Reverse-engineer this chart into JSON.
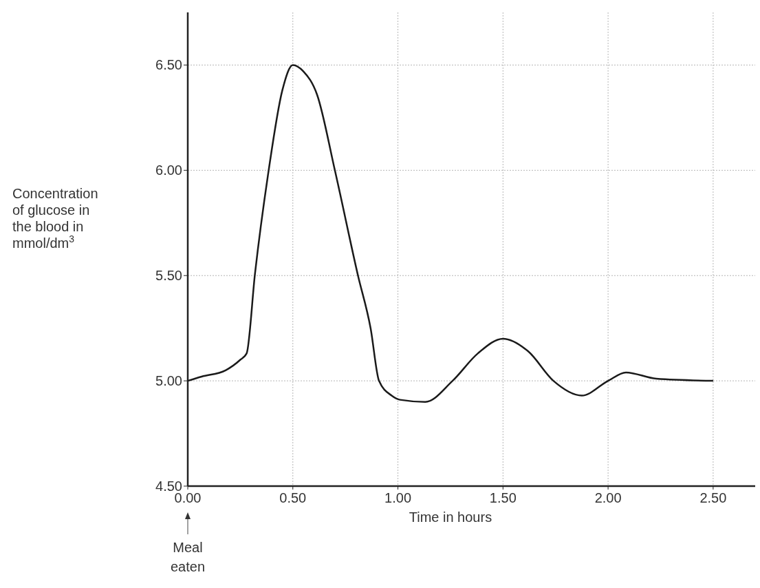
{
  "chart_data": {
    "type": "line",
    "xlabel": "Time in hours",
    "ylabel": "Concentration of glucose in the blood in mmol/dm$^{3}$",
    "x": [
      0,
      0.066,
      0.18,
      0.25,
      0.28,
      0.32,
      0.385,
      0.45,
      0.5,
      0.55,
      0.615,
      0.7,
      0.81,
      0.87,
      0.91,
      0.97,
      1.01,
      1.13,
      1.26,
      1.38,
      1.5,
      1.62,
      1.74,
      1.875,
      2.0,
      2.085,
      2.23,
      2.5
    ],
    "series": [
      {
        "color": "#1a1a1a",
        "values": [
          5.0,
          5.02,
          5.05,
          5.1,
          5.13,
          5.51,
          6.0,
          6.38,
          6.5,
          6.47,
          6.36,
          6.0,
          5.5,
          5.25,
          5.0,
          4.93,
          4.91,
          4.9,
          5.0,
          5.13,
          5.2,
          5.14,
          5.0,
          4.93,
          5.0,
          5.04,
          5.01,
          5.0
        ]
      }
    ],
    "xlim": [
      0,
      2.7
    ],
    "ylim": [
      4.5,
      6.75
    ],
    "xticks": [
      {
        "value": 0,
        "label": "0.00"
      },
      {
        "value": 0.5,
        "label": "0.50"
      },
      {
        "value": 1,
        "label": "1.00"
      },
      {
        "value": 1.5,
        "label": "1.50"
      },
      {
        "value": 2,
        "label": "2.00"
      },
      {
        "value": 2.5,
        "label": "2.50"
      }
    ],
    "yticks": [
      {
        "value": 4.5,
        "label": "4.50"
      },
      {
        "value": 5,
        "label": "5.00"
      },
      {
        "value": 5.5,
        "label": "5.50"
      },
      {
        "value": 6,
        "label": "6.00"
      },
      {
        "value": 6.5,
        "label": "6.50"
      }
    ],
    "grid": true,
    "marker": "none",
    "line_style": "solid",
    "annotations": [
      "Meal eaten"
    ]
  }
}
